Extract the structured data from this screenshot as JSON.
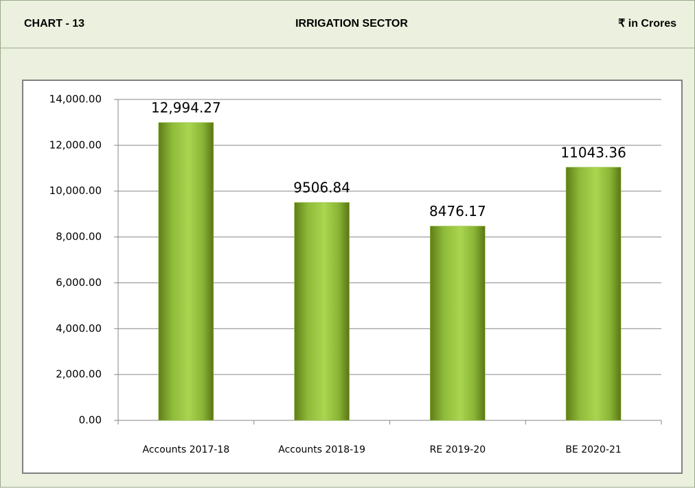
{
  "chart_data": {
    "type": "bar",
    "chart_number": "CHART - 13",
    "title": "IRRIGATION SECTOR",
    "unit_label": "₹ in Crores",
    "categories": [
      "Accounts 2017-18",
      "Accounts 2018-19",
      "RE 2019-20",
      "BE 2020-21"
    ],
    "values": [
      12994.27,
      9506.84,
      8476.17,
      11043.36
    ],
    "value_labels": [
      "12,994.27",
      "9506.84",
      "8476.17",
      "11043.36"
    ],
    "color": "#92c140",
    "ylim": [
      0,
      14000
    ],
    "yticks": [
      {
        "value": 0,
        "label": "0.00"
      },
      {
        "value": 2000,
        "label": "2,000.00"
      },
      {
        "value": 4000,
        "label": "4,000.00"
      },
      {
        "value": 6000,
        "label": "6,000.00"
      },
      {
        "value": 8000,
        "label": "8,000.00"
      },
      {
        "value": 10000,
        "label": "10,000.00"
      },
      {
        "value": 12000,
        "label": "12,000.00"
      },
      {
        "value": 14000,
        "label": "14,000.00"
      }
    ],
    "grid": true
  }
}
